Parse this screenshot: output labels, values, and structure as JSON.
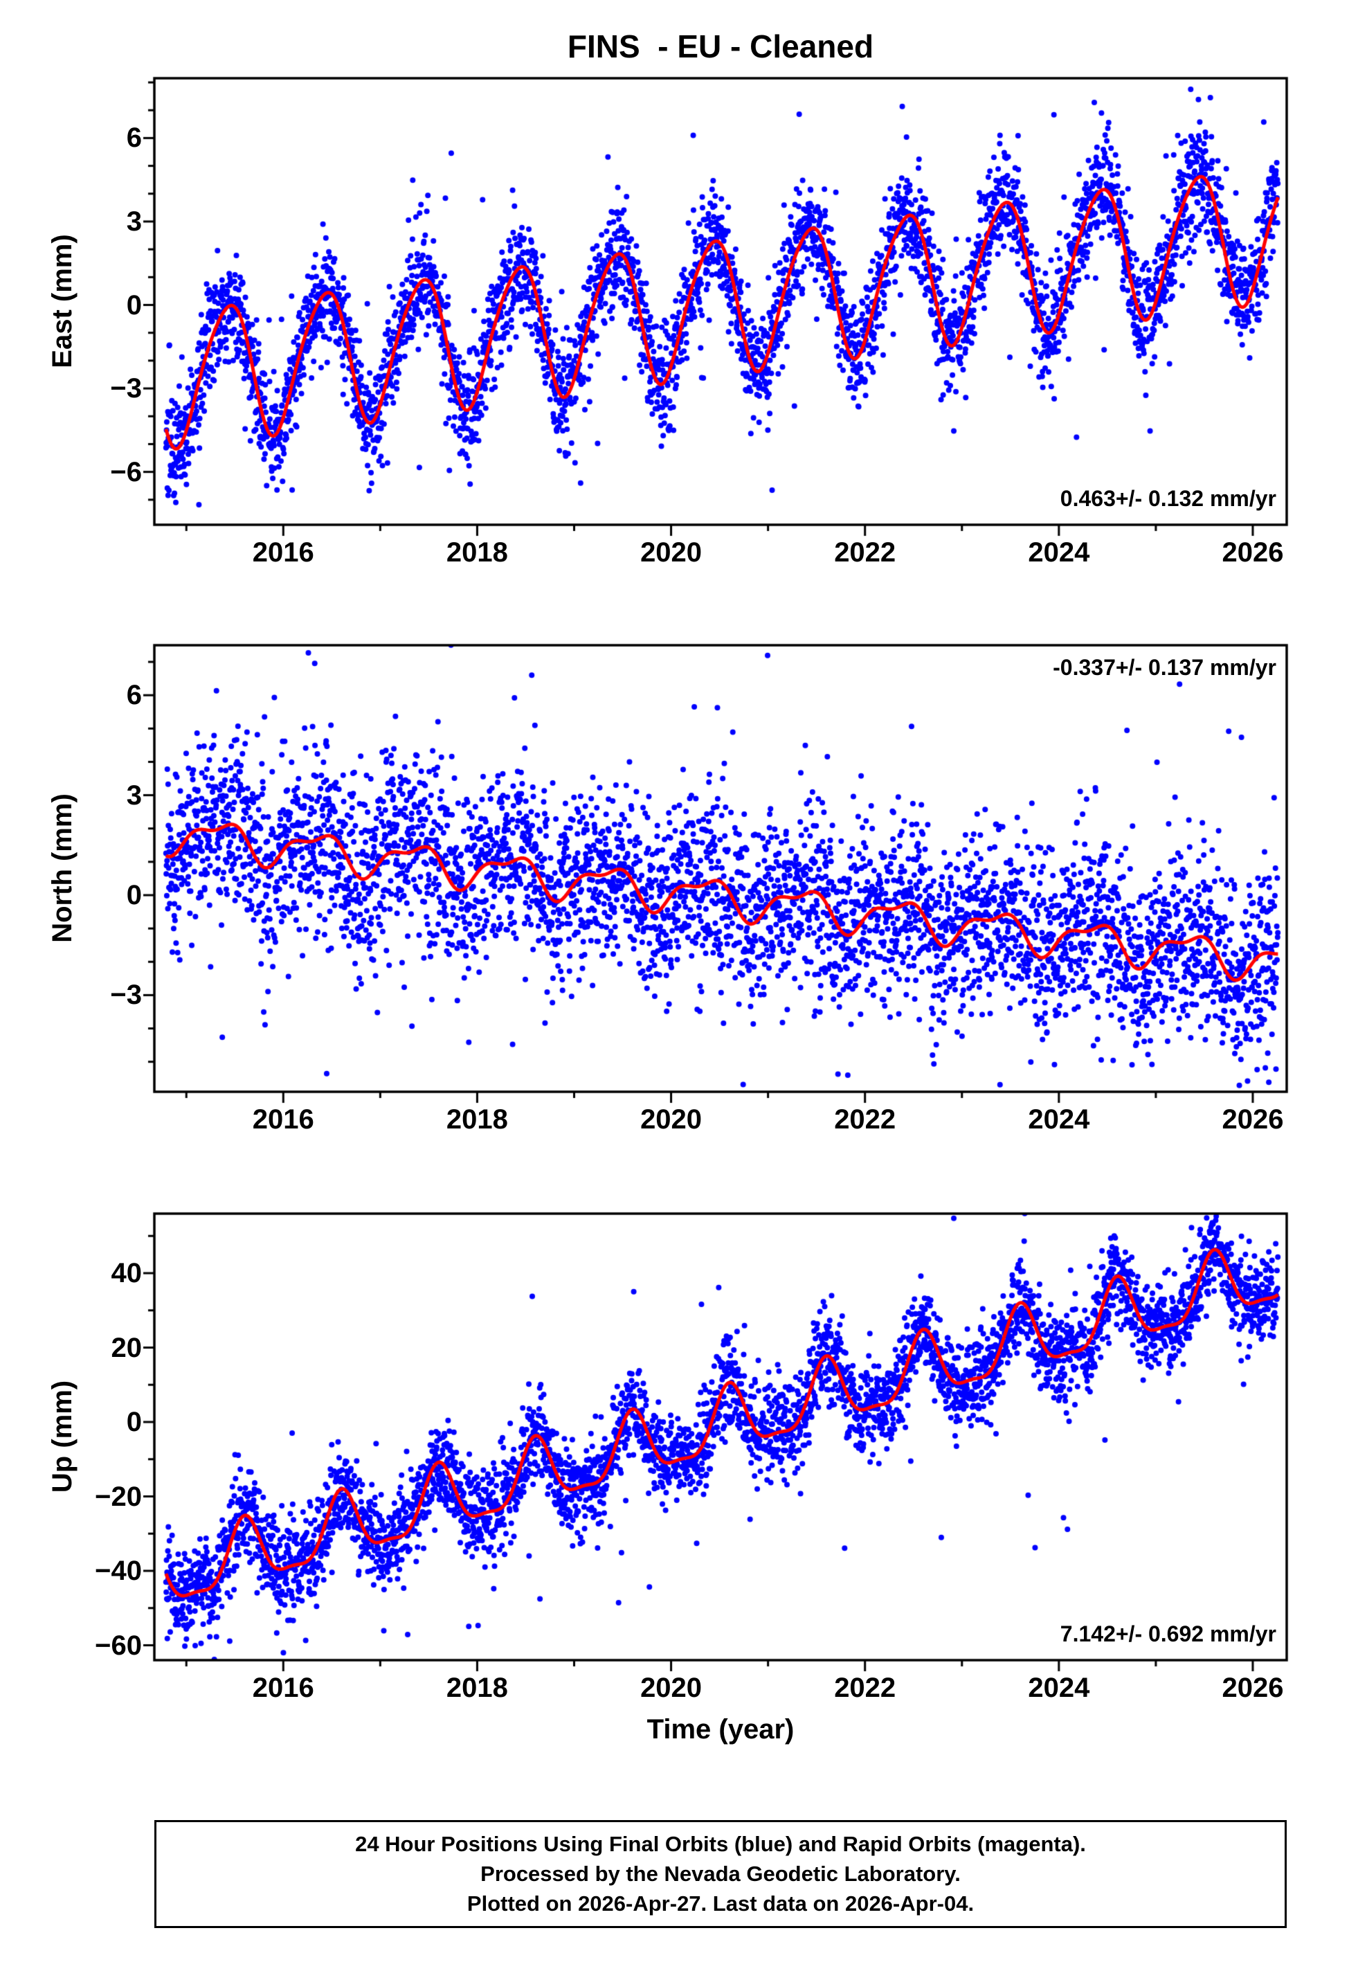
{
  "title": "FINS  - EU - Cleaned",
  "x_axis": {
    "label": "Time (year)",
    "lim": [
      2014.67,
      2026.35
    ],
    "ticks": [
      2016,
      2018,
      2020,
      2022,
      2024,
      2026
    ],
    "tick_labels": [
      "2016",
      "2018",
      "2020",
      "2022",
      "2024",
      "2026"
    ],
    "minor_step": 1,
    "data_start": 2014.79,
    "data_end": 2026.26,
    "samples_per_year": 365
  },
  "chart_data": [
    {
      "id": "east",
      "type": "scatter",
      "ylabel": "East (mm)",
      "ylim": [
        -7.9,
        8.15
      ],
      "yticks": [
        -6,
        -3,
        0,
        3,
        6
      ],
      "ytick_labels": [
        "−6",
        "−3",
        "0",
        "3",
        "6"
      ],
      "y_minor_step": 1,
      "annotation": "0.463+/- 0.132 mm/yr",
      "annotation_corner": "bottom-right",
      "rate_mm_per_yr": 0.463,
      "rate_uncertainty_mm_per_yr": 0.132,
      "model": {
        "value_at_2015": -2.5,
        "trend_mm_per_yr": 0.463,
        "annual_amplitude_mm": 2.4,
        "annual_phase_yr": 0.42,
        "semiannual_amplitude_mm": 0.3,
        "semiannual_phase_yr": 0.1
      },
      "noise_sigma_mm": 0.95,
      "outlier_fraction": 0.05,
      "outlier_scale": 2.6,
      "seed": 101
    },
    {
      "id": "north",
      "type": "scatter",
      "ylabel": "North (mm)",
      "ylim": [
        -5.9,
        7.5
      ],
      "yticks": [
        -3,
        0,
        3,
        6
      ],
      "ytick_labels": [
        "−3",
        "0",
        "3",
        "6"
      ],
      "y_minor_step": 1,
      "annotation": "-0.337+/- 0.137 mm/yr",
      "annotation_corner": "top-right",
      "rate_mm_per_yr": -0.337,
      "rate_uncertainty_mm_per_yr": 0.137,
      "model": {
        "value_at_2015": 1.8,
        "trend_mm_per_yr": -0.337,
        "annual_amplitude_mm": 0.5,
        "annual_phase_yr": 0.35,
        "semiannual_amplitude_mm": 0.22,
        "semiannual_phase_yr": 0.05
      },
      "noise_sigma_mm": 1.35,
      "outlier_fraction": 0.05,
      "outlier_scale": 2.4,
      "seed": 202
    },
    {
      "id": "up",
      "type": "scatter",
      "ylabel": "Up (mm)",
      "ylim": [
        -64,
        56
      ],
      "yticks": [
        -60,
        -40,
        -20,
        0,
        20,
        40
      ],
      "ytick_labels": [
        "−60",
        "−40",
        "−20",
        "0",
        "20",
        "40"
      ],
      "y_minor_step": 10,
      "annotation": "7.142+/- 0.692 mm/yr",
      "annotation_corner": "bottom-right",
      "rate_mm_per_yr": 7.142,
      "rate_uncertainty_mm_per_yr": 0.692,
      "model": {
        "value_at_2015": -40.5,
        "trend_mm_per_yr": 7.142,
        "annual_amplitude_mm": 8.5,
        "annual_phase_yr": 0.6,
        "semiannual_amplitude_mm": 2.6,
        "semiannual_phase_yr": 0.6
      },
      "noise_sigma_mm": 6.0,
      "outlier_fraction": 0.04,
      "outlier_scale": 2.2,
      "seed": 303
    }
  ],
  "footer": {
    "lines": [
      "24 Hour Positions Using Final Orbits (blue) and Rapid Orbits (magenta).",
      "Processed by the Nevada Geodetic Laboratory.",
      "Plotted on 2026-Apr-27. Last data on 2026-Apr-04."
    ]
  },
  "colors": {
    "points": "#0000FF",
    "rapid_orbit_points": "#FF00FF",
    "model_line": "#FF0000",
    "frame": "#000000",
    "background": "#FFFFFF"
  }
}
